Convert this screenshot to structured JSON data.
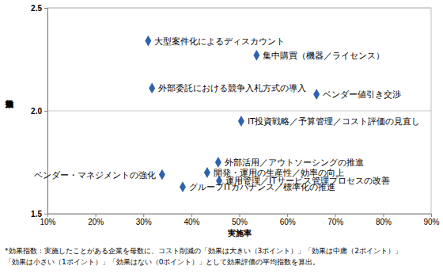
{
  "chart_data": {
    "type": "scatter",
    "x_label": "実施率",
    "y_label": "効果指数",
    "labels": [
      "大型案件化によるディスカウント",
      "集中購買（機器／ライセンス）",
      "外部委託における競争入札方式の導入",
      "ベンダー値引き交渉",
      "IT投資戦略／予算管理／コスト評価の見直し",
      "外部活用／アウトソーシングの推進",
      "開発・運用の生産性／効率の向上",
      "運用管理／ITサービス管理プロセスの改善",
      "ベンダー・マネジメントの強化",
      "グループITガバナンス／標準化の推進"
    ],
    "x": [
      31.0,
      53.6,
      31.8,
      66.1,
      50.4,
      45.6,
      43.3,
      45.8,
      33.9,
      38.2
    ],
    "values": [
      2.34,
      2.27,
      2.11,
      2.08,
      1.95,
      1.75,
      1.7,
      1.66,
      1.69,
      1.63
    ],
    "color": "#2e62ad",
    "marker": "diamond",
    "xlim": [
      10,
      90
    ],
    "xticks": [
      {
        "value": 10,
        "label": "10%"
      },
      {
        "value": 20,
        "label": "20%"
      },
      {
        "value": 30,
        "label": "30%"
      },
      {
        "value": 40,
        "label": "40%"
      },
      {
        "value": 50,
        "label": "50%"
      },
      {
        "value": 60,
        "label": "60%"
      },
      {
        "value": 70,
        "label": "70%"
      },
      {
        "value": 80,
        "label": "80%"
      },
      {
        "value": 90,
        "label": "90%"
      }
    ],
    "ylim": [
      1.5,
      2.5
    ],
    "yticks": [
      1.5,
      {
        "value": 2.0,
        "label": "2.0"
      },
      {
        "value": 2.5,
        "label": "2.5"
      }
    ],
    "grid": true,
    "annotations": [
      "*効果指数：実施したことがある企業を母数に、コスト削減の「効果は大きい（3ポイント）」「効果は中庸（2ポイント）」",
      "「効果は小さい（1ポイント）」「効果はない（0ポイント）」として効果評価の平均指数を算出。"
    ]
  }
}
